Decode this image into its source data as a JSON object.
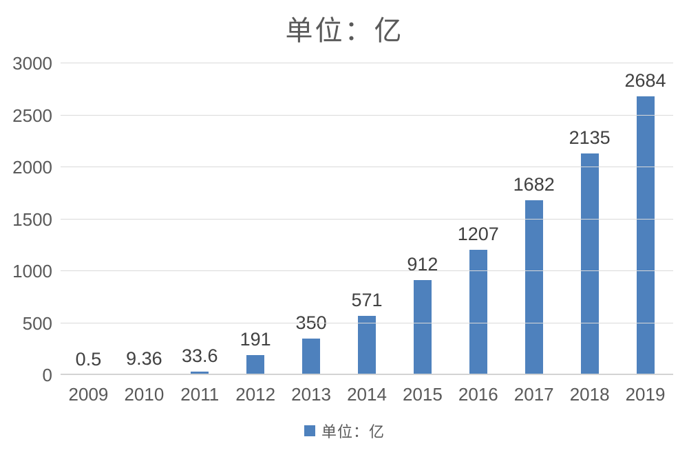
{
  "chart_data": {
    "type": "bar",
    "title": "单位：亿",
    "legend_label": "单位：亿",
    "categories": [
      "2009",
      "2010",
      "2011",
      "2012",
      "2013",
      "2014",
      "2015",
      "2016",
      "2017",
      "2018",
      "2019"
    ],
    "values": [
      0.5,
      9.36,
      33.6,
      191,
      350,
      571,
      912,
      1207,
      1682,
      2135,
      2684
    ],
    "labels": [
      "0.5",
      "9.36",
      "33.6",
      "191",
      "350",
      "571",
      "912",
      "1207",
      "1682",
      "2135",
      "2684"
    ],
    "xlabel": "",
    "ylabel": "",
    "ylim": [
      0,
      3000
    ],
    "yticks": [
      0,
      500,
      1000,
      1500,
      2000,
      2500,
      3000
    ],
    "grid": true,
    "legend_position": "bottom",
    "bar_color": "#4e81bd",
    "gridline_color": "#d9d9d9",
    "label_color": "#404040",
    "axis_text_color": "#595959",
    "title_color": "#595959"
  }
}
